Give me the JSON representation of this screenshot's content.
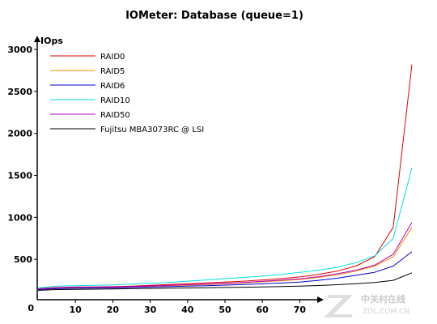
{
  "chart_data": {
    "type": "line",
    "title": "IOMeter: Database (queue=1)",
    "ylabel": "IOps",
    "xlabel": "",
    "x": [
      0,
      5,
      10,
      15,
      20,
      25,
      30,
      35,
      40,
      45,
      50,
      55,
      60,
      65,
      70,
      75,
      80,
      85,
      90,
      95,
      100
    ],
    "xticks": [
      "10",
      "20",
      "30",
      "40",
      "50",
      "60",
      "70"
    ],
    "yticks": [
      "500",
      "1000",
      "1500",
      "2000",
      "2500",
      "3000"
    ],
    "x_origin_label": "0",
    "y_origin_label": "0",
    "xlim": [
      0,
      100
    ],
    "ylim": [
      0,
      3000
    ],
    "grid": false,
    "legend_position": "top-left",
    "series": [
      {
        "name": "RAID0",
        "color": "#e00000",
        "values": [
          150,
          165,
          170,
          172,
          175,
          180,
          190,
          200,
          210,
          220,
          230,
          240,
          255,
          270,
          290,
          320,
          360,
          420,
          530,
          880,
          2820
        ]
      },
      {
        "name": "RAID5",
        "color": "#ff8c00",
        "values": [
          145,
          160,
          163,
          165,
          168,
          172,
          178,
          185,
          192,
          200,
          210,
          220,
          232,
          245,
          260,
          285,
          315,
          360,
          420,
          530,
          880
        ]
      },
      {
        "name": "RAID6",
        "color": "#0000c8",
        "values": [
          140,
          150,
          155,
          158,
          160,
          165,
          170,
          175,
          180,
          186,
          193,
          200,
          208,
          218,
          230,
          250,
          275,
          310,
          345,
          420,
          590
        ]
      },
      {
        "name": "RAID10",
        "color": "#00e0e0",
        "values": [
          160,
          180,
          185,
          190,
          195,
          205,
          215,
          225,
          240,
          255,
          270,
          285,
          300,
          320,
          345,
          370,
          405,
          460,
          540,
          750,
          1590
        ]
      },
      {
        "name": "RAID50",
        "color": "#b000c0",
        "values": [
          148,
          163,
          168,
          170,
          172,
          176,
          183,
          190,
          198,
          206,
          215,
          225,
          238,
          252,
          268,
          293,
          328,
          370,
          430,
          560,
          940
        ]
      },
      {
        "name": "Fujitsu MBA3073RC @ LSI",
        "color": "#000000",
        "values": [
          130,
          140,
          143,
          145,
          147,
          150,
          153,
          156,
          159,
          162,
          165,
          168,
          172,
          176,
          180,
          188,
          198,
          210,
          225,
          250,
          340
        ]
      }
    ]
  },
  "watermark": {
    "logo": "Z",
    "name": "中关村在线",
    "url": "ZOL.COM.CN"
  }
}
